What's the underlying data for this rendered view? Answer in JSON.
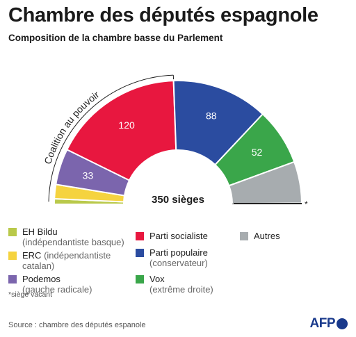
{
  "header": {
    "title": "Chambre des députés espagnole",
    "subtitle": "Composition de la chambre basse du Parlement"
  },
  "chart_data": {
    "type": "pie",
    "subtype": "semicircle-parliament",
    "total_label": "350 sièges",
    "total": 350,
    "coalition_label": "Coalition au pouvoir",
    "vacant_marker": "*",
    "series": [
      {
        "name": "EH Bildu",
        "value": 5,
        "color": "#b9c94a",
        "data_label": ""
      },
      {
        "name": "ERC",
        "value": 13,
        "color": "#f5d33f",
        "data_label": ""
      },
      {
        "name": "Podemos",
        "value": 33,
        "color": "#7b65ad",
        "data_label": "33"
      },
      {
        "name": "Parti socialiste",
        "value": 120,
        "color": "#e8173f",
        "data_label": "120"
      },
      {
        "name": "Parti populaire",
        "value": 88,
        "color": "#2b4ca0",
        "data_label": "88"
      },
      {
        "name": "Vox",
        "value": 52,
        "color": "#3aa64a",
        "data_label": "52"
      },
      {
        "name": "Autres",
        "value": 38,
        "color": "#a7acaf",
        "data_label": ""
      },
      {
        "name": "siège vacant",
        "value": 1,
        "color": "#222222",
        "data_label": ""
      }
    ]
  },
  "legend": {
    "col1": [
      {
        "label": "EH Bildu",
        "note": "(indépendantiste basque)",
        "color": "#b9c94a"
      },
      {
        "label": "ERC",
        "note": "(indépendantiste catalan)",
        "color": "#f5d33f"
      },
      {
        "label": "Podemos",
        "note": "(gauche radicale)",
        "color": "#7b65ad"
      }
    ],
    "col2": [
      {
        "label": "Parti socialiste",
        "note": "",
        "color": "#e8173f"
      },
      {
        "label": "Parti populaire",
        "note": "(conservateur)",
        "color": "#2b4ca0"
      },
      {
        "label": "Vox",
        "note": "(extrême droite)",
        "color": "#3aa64a"
      }
    ],
    "col3": [
      {
        "label": "Autres",
        "note": "",
        "color": "#a7acaf"
      }
    ]
  },
  "footer": {
    "footnote": "*siège vacant",
    "source": "Source : chambre des députés espanole",
    "logo_text": "AFP"
  }
}
